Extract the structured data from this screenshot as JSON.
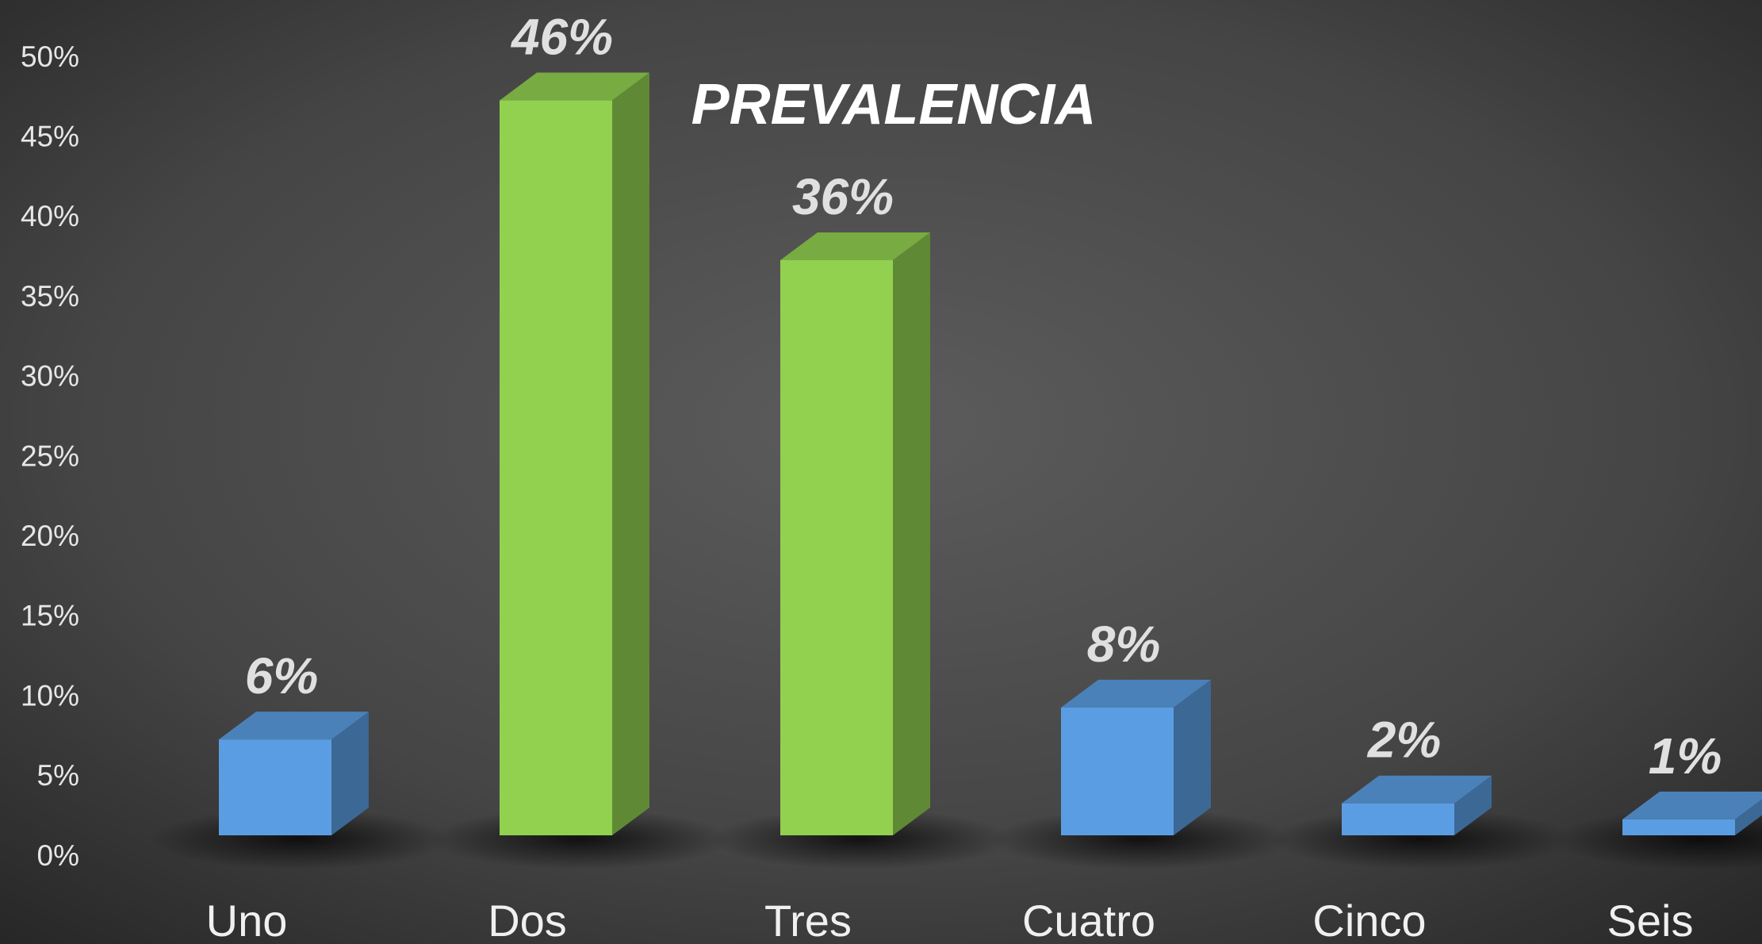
{
  "chart_data": {
    "type": "bar3d",
    "title": "PREVALENCIA",
    "categories": [
      "Uno",
      "Dos",
      "Tres",
      "Cuatro",
      "Cinco",
      "Seis"
    ],
    "values": [
      6,
      46,
      36,
      8,
      2,
      1
    ],
    "value_labels": [
      "6%",
      "46%",
      "36%",
      "8%",
      "2%",
      "1%"
    ],
    "colors": [
      "#5b9de2",
      "#92d050",
      "#92d050",
      "#5b9de2",
      "#5b9de2",
      "#5b9de2"
    ],
    "ylim": [
      0,
      50
    ],
    "yticks": [
      {
        "value": 0,
        "label": "0%"
      },
      {
        "value": 5,
        "label": "5%"
      },
      {
        "value": 10,
        "label": "10%"
      },
      {
        "value": 15,
        "label": "15%"
      },
      {
        "value": 20,
        "label": "20%"
      },
      {
        "value": 25,
        "label": "25%"
      },
      {
        "value": 30,
        "label": "30%"
      },
      {
        "value": 35,
        "label": "35%"
      },
      {
        "value": 40,
        "label": "40%"
      },
      {
        "value": 45,
        "label": "45%"
      },
      {
        "value": 50,
        "label": "50%"
      }
    ],
    "grid": false
  }
}
